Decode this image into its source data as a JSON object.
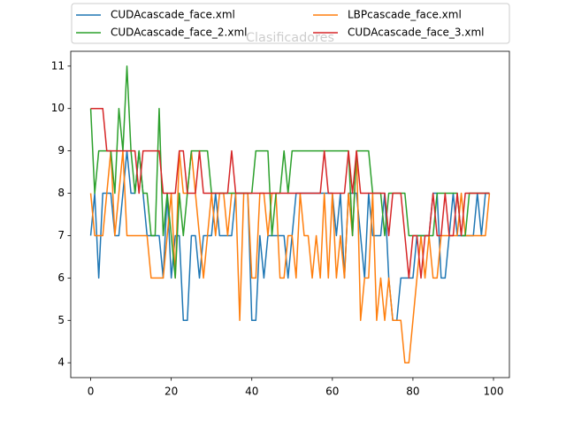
{
  "chart_data": {
    "type": "line",
    "title": "Clasificadores",
    "x": [
      0,
      1,
      2,
      3,
      4,
      5,
      6,
      7,
      8,
      9,
      10,
      11,
      12,
      13,
      14,
      15,
      16,
      17,
      18,
      19,
      20,
      21,
      22,
      23,
      24,
      25,
      26,
      27,
      28,
      29,
      30,
      31,
      32,
      33,
      34,
      35,
      36,
      37,
      38,
      39,
      40,
      41,
      42,
      43,
      44,
      45,
      46,
      47,
      48,
      49,
      50,
      51,
      52,
      53,
      54,
      55,
      56,
      57,
      58,
      59,
      60,
      61,
      62,
      63,
      64,
      65,
      66,
      67,
      68,
      69,
      70,
      71,
      72,
      73,
      74,
      75,
      76,
      77,
      78,
      79,
      80,
      81,
      82,
      83,
      84,
      85,
      86,
      87,
      88,
      89,
      90,
      91,
      92,
      93,
      94,
      95,
      96,
      97,
      98,
      99
    ],
    "series": [
      {
        "name": "CUDAcascade_face.xml",
        "color": "#1f77b4",
        "values": [
          7,
          8,
          6,
          8,
          8,
          8,
          7,
          7,
          8,
          9,
          8,
          8,
          9,
          8,
          7,
          7,
          7,
          7,
          6,
          8,
          6,
          7,
          7,
          5,
          5,
          7,
          7,
          6,
          7,
          7,
          7,
          8,
          7,
          7,
          7,
          7,
          8,
          8,
          8,
          8,
          5,
          5,
          7,
          6,
          7,
          7,
          7,
          7,
          7,
          6,
          7,
          8,
          8,
          8,
          8,
          8,
          8,
          8,
          8,
          8,
          8,
          7,
          8,
          6,
          8,
          8,
          8,
          7,
          6,
          8,
          7,
          7,
          7,
          8,
          6,
          5,
          5,
          6,
          6,
          6,
          6,
          7,
          7,
          7,
          7,
          8,
          8,
          6,
          6,
          7,
          8,
          7,
          7,
          7,
          7,
          7,
          8,
          7,
          8,
          8
        ]
      },
      {
        "name": "LBPcascade_face.xml",
        "color": "#ff7f0e",
        "values": [
          8,
          7,
          7,
          7,
          8,
          9,
          7,
          8,
          9,
          7,
          7,
          7,
          7,
          7,
          7,
          6,
          6,
          6,
          6,
          7,
          8,
          6,
          9,
          8,
          8,
          9,
          8,
          7,
          6,
          7,
          8,
          7,
          8,
          8,
          7,
          8,
          8,
          5,
          8,
          8,
          6,
          6,
          8,
          8,
          7,
          8,
          8,
          6,
          6,
          7,
          7,
          6,
          8,
          7,
          7,
          6,
          7,
          6,
          8,
          6,
          8,
          6,
          7,
          6,
          8,
          7,
          9,
          5,
          6,
          6,
          8,
          5,
          6,
          5,
          6,
          5,
          5,
          5,
          4,
          4,
          5,
          6,
          7,
          6,
          7,
          6,
          6,
          7,
          7,
          7,
          7,
          7,
          8,
          7,
          7,
          7,
          7,
          7,
          7,
          8
        ]
      },
      {
        "name": "CUDAcascade_face_2.xml",
        "color": "#2ca02c",
        "values": [
          10,
          8,
          9,
          9,
          9,
          9,
          8,
          10,
          9,
          11,
          9,
          8,
          9,
          8,
          8,
          7,
          7,
          10,
          7,
          8,
          7,
          6,
          8,
          7,
          8,
          9,
          9,
          9,
          9,
          9,
          8,
          8,
          8,
          8,
          8,
          8,
          8,
          8,
          8,
          8,
          8,
          9,
          9,
          9,
          9,
          7,
          8,
          8,
          9,
          8,
          9,
          9,
          9,
          9,
          9,
          9,
          9,
          9,
          9,
          9,
          9,
          9,
          9,
          9,
          9,
          7,
          9,
          9,
          9,
          9,
          8,
          8,
          8,
          7,
          8,
          8,
          8,
          8,
          8,
          7,
          7,
          7,
          7,
          7,
          7,
          7,
          8,
          8,
          8,
          8,
          8,
          8,
          7,
          7,
          8,
          8,
          8,
          8,
          8,
          8
        ]
      },
      {
        "name": "CUDAcascade_face_3.xml",
        "color": "#d62728",
        "values": [
          10,
          10,
          10,
          10,
          9,
          9,
          9,
          9,
          9,
          9,
          9,
          9,
          8,
          9,
          9,
          9,
          9,
          9,
          8,
          8,
          8,
          8,
          9,
          9,
          8,
          8,
          8,
          9,
          8,
          8,
          8,
          8,
          8,
          8,
          8,
          9,
          8,
          8,
          8,
          8,
          8,
          8,
          8,
          8,
          8,
          8,
          8,
          8,
          8,
          8,
          8,
          8,
          8,
          8,
          8,
          8,
          8,
          8,
          9,
          8,
          8,
          8,
          8,
          8,
          9,
          8,
          9,
          8,
          8,
          8,
          8,
          8,
          8,
          8,
          7,
          8,
          8,
          8,
          7,
          6,
          7,
          7,
          6,
          7,
          7,
          8,
          7,
          7,
          8,
          7,
          7,
          8,
          7,
          8,
          8,
          8,
          8,
          8,
          8,
          8
        ]
      }
    ],
    "xlim": [
      -4.95,
      103.95
    ],
    "ylim": [
      3.65,
      11.35
    ],
    "xticks": [
      0,
      20,
      40,
      60,
      80,
      100
    ],
    "yticks": [
      4,
      5,
      6,
      7,
      8,
      9,
      10,
      11
    ],
    "grid": false,
    "legend": "upper center"
  }
}
